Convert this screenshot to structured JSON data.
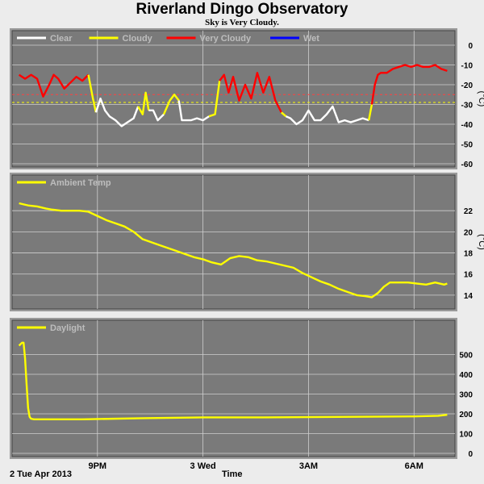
{
  "title": "Riverland Dingo Observatory",
  "subtitle": "Sky is Very Cloudy.",
  "footer": {
    "date": "2 Tue Apr 2013",
    "xlabel": "Time"
  },
  "colors": {
    "plot_bg": "#7a7a7a",
    "grid": "#cfcfcf",
    "clear": "#ffffff",
    "cloudy": "#ffff00",
    "very_cloudy": "#ff0000",
    "wet": "#0000ff",
    "temp": "#ffff00",
    "daylight": "#ffff00"
  },
  "chart_data": [
    {
      "type": "line",
      "name": "sky",
      "ylabel": "(°C)",
      "ylim": [
        -60,
        0
      ],
      "yticks": [
        0,
        -10,
        -20,
        -30,
        -40,
        -50,
        -60
      ],
      "x_ticks": [
        {
          "x": 1.5,
          "label": "9PM"
        },
        {
          "x": 5.0,
          "label": "3 Wed"
        },
        {
          "x": 8.5,
          "label": "3AM"
        },
        {
          "x": 12.0,
          "label": "6AM"
        }
      ],
      "xlim": [
        -1.25,
        13.25
      ],
      "thresholds": [
        {
          "value": -25,
          "color": "#ff4040"
        },
        {
          "value": -29,
          "color": "#ffff00"
        }
      ],
      "legend": [
        {
          "label": "Clear",
          "color": "#ffffff"
        },
        {
          "label": "Cloudy",
          "color": "#ffff00"
        },
        {
          "label": "Very Cloudy",
          "color": "#ff0000"
        },
        {
          "label": "Wet",
          "color": "#0000ff"
        }
      ],
      "x": [
        -1.1,
        -0.9,
        -0.7,
        -0.5,
        -0.3,
        -0.1,
        0.05,
        0.2,
        0.4,
        0.6,
        0.8,
        1.0,
        1.2,
        1.35,
        1.45,
        1.6,
        1.75,
        1.9,
        2.1,
        2.3,
        2.5,
        2.7,
        2.85,
        3.0,
        3.1,
        3.2,
        3.35,
        3.5,
        3.7,
        3.9,
        4.05,
        4.2,
        4.3,
        4.45,
        4.6,
        4.8,
        5.0,
        5.2,
        5.4,
        5.55,
        5.7,
        5.85,
        6.0,
        6.2,
        6.4,
        6.6,
        6.8,
        7.0,
        7.2,
        7.4,
        7.6,
        7.75,
        7.9,
        8.1,
        8.3,
        8.5,
        8.7,
        8.9,
        9.1,
        9.3,
        9.5,
        9.7,
        9.9,
        10.1,
        10.3,
        10.5,
        10.6,
        10.7,
        10.8,
        10.9,
        11.1,
        11.3,
        11.5,
        11.7,
        11.9,
        12.1,
        12.3,
        12.5,
        12.7,
        12.9,
        13.1
      ],
      "y": [
        -15,
        -17,
        -15,
        -17,
        -26,
        -20,
        -15,
        -17,
        -22,
        -19,
        -16,
        -18,
        -15,
        -27,
        -34,
        -27,
        -33,
        -36,
        -38,
        -41,
        -39,
        -37,
        -31,
        -35,
        -24,
        -33,
        -33,
        -38,
        -35,
        -28,
        -25,
        -28,
        -38,
        -38,
        -38,
        -37,
        -38,
        -36,
        -35,
        -18,
        -15,
        -24,
        -16,
        -28,
        -20,
        -27,
        -14,
        -24,
        -16,
        -28,
        -34,
        -36,
        -37,
        -40,
        -38,
        -33,
        -38,
        -38,
        -35,
        -31,
        -39,
        -38,
        -39,
        -38,
        -37,
        -38,
        -30,
        -20,
        -15,
        -14,
        -14,
        -12,
        -11,
        -10,
        -11,
        -10,
        -11,
        -11,
        -10,
        -12,
        -13
      ],
      "segments": [
        {
          "from": 0,
          "to": 12,
          "class": "very_cloudy"
        },
        {
          "from": 12,
          "to": 14,
          "class": "cloudy"
        },
        {
          "from": 14,
          "to": 22,
          "class": "clear"
        },
        {
          "from": 22,
          "to": 25,
          "class": "cloudy"
        },
        {
          "from": 25,
          "to": 28,
          "class": "clear"
        },
        {
          "from": 28,
          "to": 31,
          "class": "cloudy"
        },
        {
          "from": 31,
          "to": 37,
          "class": "clear"
        },
        {
          "from": 37,
          "to": 39,
          "class": "cloudy"
        },
        {
          "from": 39,
          "to": 50,
          "class": "very_cloudy"
        },
        {
          "from": 50,
          "to": 51,
          "class": "cloudy"
        },
        {
          "from": 51,
          "to": 65,
          "class": "clear"
        },
        {
          "from": 65,
          "to": 66,
          "class": "cloudy"
        },
        {
          "from": 66,
          "to": 80,
          "class": "very_cloudy"
        }
      ]
    },
    {
      "type": "line",
      "name": "temp",
      "ylabel": "(°C)",
      "ylim": [
        13,
        24
      ],
      "yticks": [
        22,
        20,
        18,
        16,
        14
      ],
      "xlim": [
        -1.25,
        13.25
      ],
      "legend": [
        {
          "label": "Ambient Temp",
          "color": "#ffff00"
        }
      ],
      "x": [
        -1.1,
        -0.8,
        -0.5,
        -0.2,
        0.0,
        0.3,
        0.6,
        0.9,
        1.2,
        1.5,
        1.8,
        2.1,
        2.4,
        2.7,
        3.0,
        3.2,
        3.5,
        3.8,
        4.1,
        4.4,
        4.7,
        5.0,
        5.3,
        5.6,
        5.9,
        6.2,
        6.5,
        6.8,
        7.1,
        7.4,
        7.7,
        8.0,
        8.3,
        8.6,
        8.9,
        9.2,
        9.5,
        9.8,
        10.1,
        10.4,
        10.6,
        10.8,
        11.0,
        11.2,
        11.5,
        11.8,
        12.1,
        12.4,
        12.7,
        13.0,
        13.1
      ],
      "y": [
        22.7,
        22.5,
        22.4,
        22.2,
        22.1,
        22.0,
        22.0,
        22.0,
        21.9,
        21.5,
        21.1,
        20.8,
        20.5,
        20.0,
        19.3,
        19.1,
        18.8,
        18.5,
        18.2,
        17.9,
        17.6,
        17.4,
        17.1,
        16.9,
        17.5,
        17.7,
        17.6,
        17.3,
        17.2,
        17.0,
        16.8,
        16.6,
        16.1,
        15.7,
        15.3,
        15.0,
        14.6,
        14.3,
        14.0,
        13.9,
        13.8,
        14.2,
        14.8,
        15.2,
        15.2,
        15.2,
        15.1,
        15.0,
        15.2,
        15.0,
        15.1
      ]
    },
    {
      "type": "line",
      "name": "daylight",
      "ylabel": "",
      "ylim": [
        0,
        600
      ],
      "yticks": [
        500,
        400,
        300,
        200,
        100,
        0
      ],
      "xlim": [
        -1.25,
        13.25
      ],
      "legend": [
        {
          "label": "Daylight",
          "color": "#ffff00"
        }
      ],
      "x": [
        -1.1,
        -1.0,
        -0.95,
        -0.9,
        -0.85,
        -0.8,
        -0.75,
        -0.7,
        -0.6,
        -0.5,
        0.0,
        1.0,
        2.0,
        3.0,
        4.0,
        5.0,
        6.0,
        7.0,
        8.0,
        9.0,
        10.0,
        11.0,
        12.0,
        12.8,
        13.1
      ],
      "y": [
        545,
        560,
        560,
        480,
        350,
        230,
        185,
        175,
        172,
        172,
        172,
        172,
        175,
        178,
        180,
        182,
        182,
        182,
        183,
        184,
        185,
        186,
        187,
        190,
        195
      ]
    }
  ]
}
